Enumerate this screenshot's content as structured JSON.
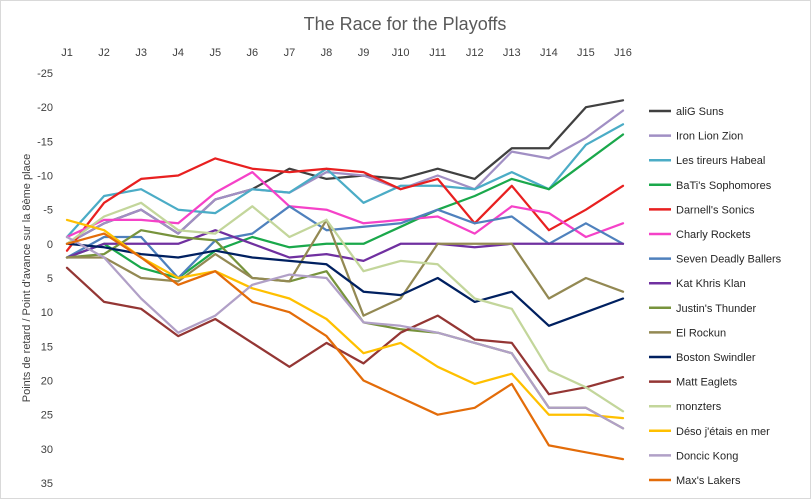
{
  "chart_data": {
    "type": "line",
    "title": "The Race for the Playoffs",
    "xlabel": "",
    "ylabel": "Points de retard / Point d'avance sur la 8ème place",
    "categories": [
      "J1",
      "J2",
      "J3",
      "J4",
      "J5",
      "J6",
      "J7",
      "J8",
      "J9",
      "J10",
      "J11",
      "J12",
      "J13",
      "J14",
      "J15",
      "J16"
    ],
    "ylim": [
      35,
      -25
    ],
    "yticks": [
      -25,
      -20,
      -15,
      -10,
      -5,
      0,
      5,
      10,
      15,
      20,
      25,
      30,
      35
    ],
    "ytick_labels": [
      "-25",
      "-20",
      "-15",
      "-10",
      "-5",
      "0",
      "5",
      "10",
      "15",
      "20",
      "25",
      "30",
      "35"
    ],
    "y_axis_inverted": true,
    "x_axis_position": "top",
    "grid": false,
    "legend_position": "right",
    "series": [
      {
        "name": "aliG Suns",
        "color": "#404040",
        "values": [
          0,
          -3,
          -5,
          -1.5,
          -6.5,
          -8,
          -11,
          -9.5,
          -10,
          -9.5,
          -11,
          -9.5,
          -14,
          -14,
          -20,
          -21
        ]
      },
      {
        "name": "Iron Lion Zion",
        "color": "#a18fc4",
        "values": [
          0,
          -3,
          -5,
          -1.5,
          -6.5,
          -8,
          -7.5,
          -10.5,
          -10,
          -8,
          -10,
          -8,
          -13.5,
          -12.5,
          -15.5,
          -19.5
        ]
      },
      {
        "name": "Les tireurs Habeal",
        "color": "#4bacc6",
        "values": [
          -1,
          -7,
          -8,
          -5,
          -4.5,
          -8,
          -7.5,
          -11,
          -6,
          -8.5,
          -8.5,
          -8,
          -10.5,
          -8,
          -14.5,
          -17.5
        ]
      },
      {
        "name": "BaTi's Sophomores",
        "color": "#1aa84b",
        "values": [
          2,
          0,
          3.5,
          5,
          1,
          -1,
          0.5,
          0,
          0,
          -2.5,
          -5,
          -7,
          -9.5,
          -8,
          -12,
          -16
        ]
      },
      {
        "name": "Darnell's Sonics",
        "color": "#e82020",
        "values": [
          1,
          -6,
          -9.5,
          -10,
          -12.5,
          -11,
          -10.5,
          -11,
          -10.5,
          -8,
          -9.5,
          -3,
          -8.5,
          -2,
          -5,
          -8.5
        ]
      },
      {
        "name": "Charly Rockets",
        "color": "#f542c8",
        "values": [
          -1,
          -3.5,
          -3.5,
          -3,
          -7.5,
          -10.5,
          -5.5,
          -5,
          -3,
          -3.5,
          -4,
          -1.5,
          -5.5,
          -4.5,
          -1,
          -3
        ]
      },
      {
        "name": "Seven Deadly Ballers",
        "color": "#4f81bd",
        "values": [
          2,
          -1,
          -1,
          5,
          -0.5,
          -1.5,
          -5.5,
          -2,
          -2.5,
          -3,
          -5,
          -3,
          -4,
          0,
          -3,
          0
        ]
      },
      {
        "name": "Kat Khris Klan",
        "color": "#7030a0",
        "values": [
          2,
          0,
          0,
          0,
          -2,
          0,
          2,
          1.5,
          2.5,
          0,
          0,
          0.5,
          0,
          0,
          0,
          0
        ]
      },
      {
        "name": "Justin's Thunder",
        "color": "#77933c",
        "values": [
          2,
          1.5,
          -2,
          -1,
          -0.5,
          5,
          5.5,
          4,
          11.5,
          12.5,
          13,
          14.5,
          16,
          24,
          24,
          27
        ]
      },
      {
        "name": "El Rockun",
        "color": "#938953",
        "values": [
          2,
          2,
          5,
          5.5,
          1.5,
          5,
          5.5,
          -3.5,
          10.5,
          8,
          0,
          0,
          0,
          8,
          5,
          7
        ]
      },
      {
        "name": "Boston Swindler",
        "color": "#002060",
        "values": [
          0,
          0.5,
          1.5,
          2,
          1,
          2,
          2.5,
          3,
          7,
          7.5,
          5,
          8.5,
          7,
          12,
          10,
          8
        ]
      },
      {
        "name": "Matt Eaglets",
        "color": "#943634",
        "values": [
          3.5,
          8.5,
          9.5,
          13.5,
          11,
          14.5,
          18,
          14.5,
          17.5,
          13,
          10.5,
          14,
          14.5,
          22,
          21,
          19.5
        ]
      },
      {
        "name": "monzters",
        "color": "#c3d69b",
        "values": [
          0,
          -4,
          -6,
          -2,
          -1.5,
          -5.5,
          -1,
          -3.5,
          4,
          2.5,
          3,
          8,
          9.5,
          18.5,
          21,
          24.5
        ]
      },
      {
        "name": "Déso j'étais en mer",
        "color": "#ffc000",
        "values": [
          -3.5,
          -2,
          2,
          5,
          4,
          6.5,
          8,
          11,
          16,
          14.5,
          18,
          20.5,
          19,
          25,
          25,
          25.5
        ]
      },
      {
        "name": "Doncic Kong",
        "color": "#b1a0c7",
        "values": [
          -1,
          2,
          8,
          13,
          10.5,
          6,
          4.5,
          5,
          11.5,
          12,
          13,
          14.5,
          16,
          24,
          24,
          27
        ]
      },
      {
        "name": "Max's Lakers",
        "color": "#e36c09",
        "values": [
          0,
          -1.5,
          2,
          6,
          4,
          8.5,
          10,
          13.5,
          20,
          22.5,
          25,
          24,
          20.5,
          29.5,
          30.5,
          31.5
        ]
      }
    ]
  }
}
